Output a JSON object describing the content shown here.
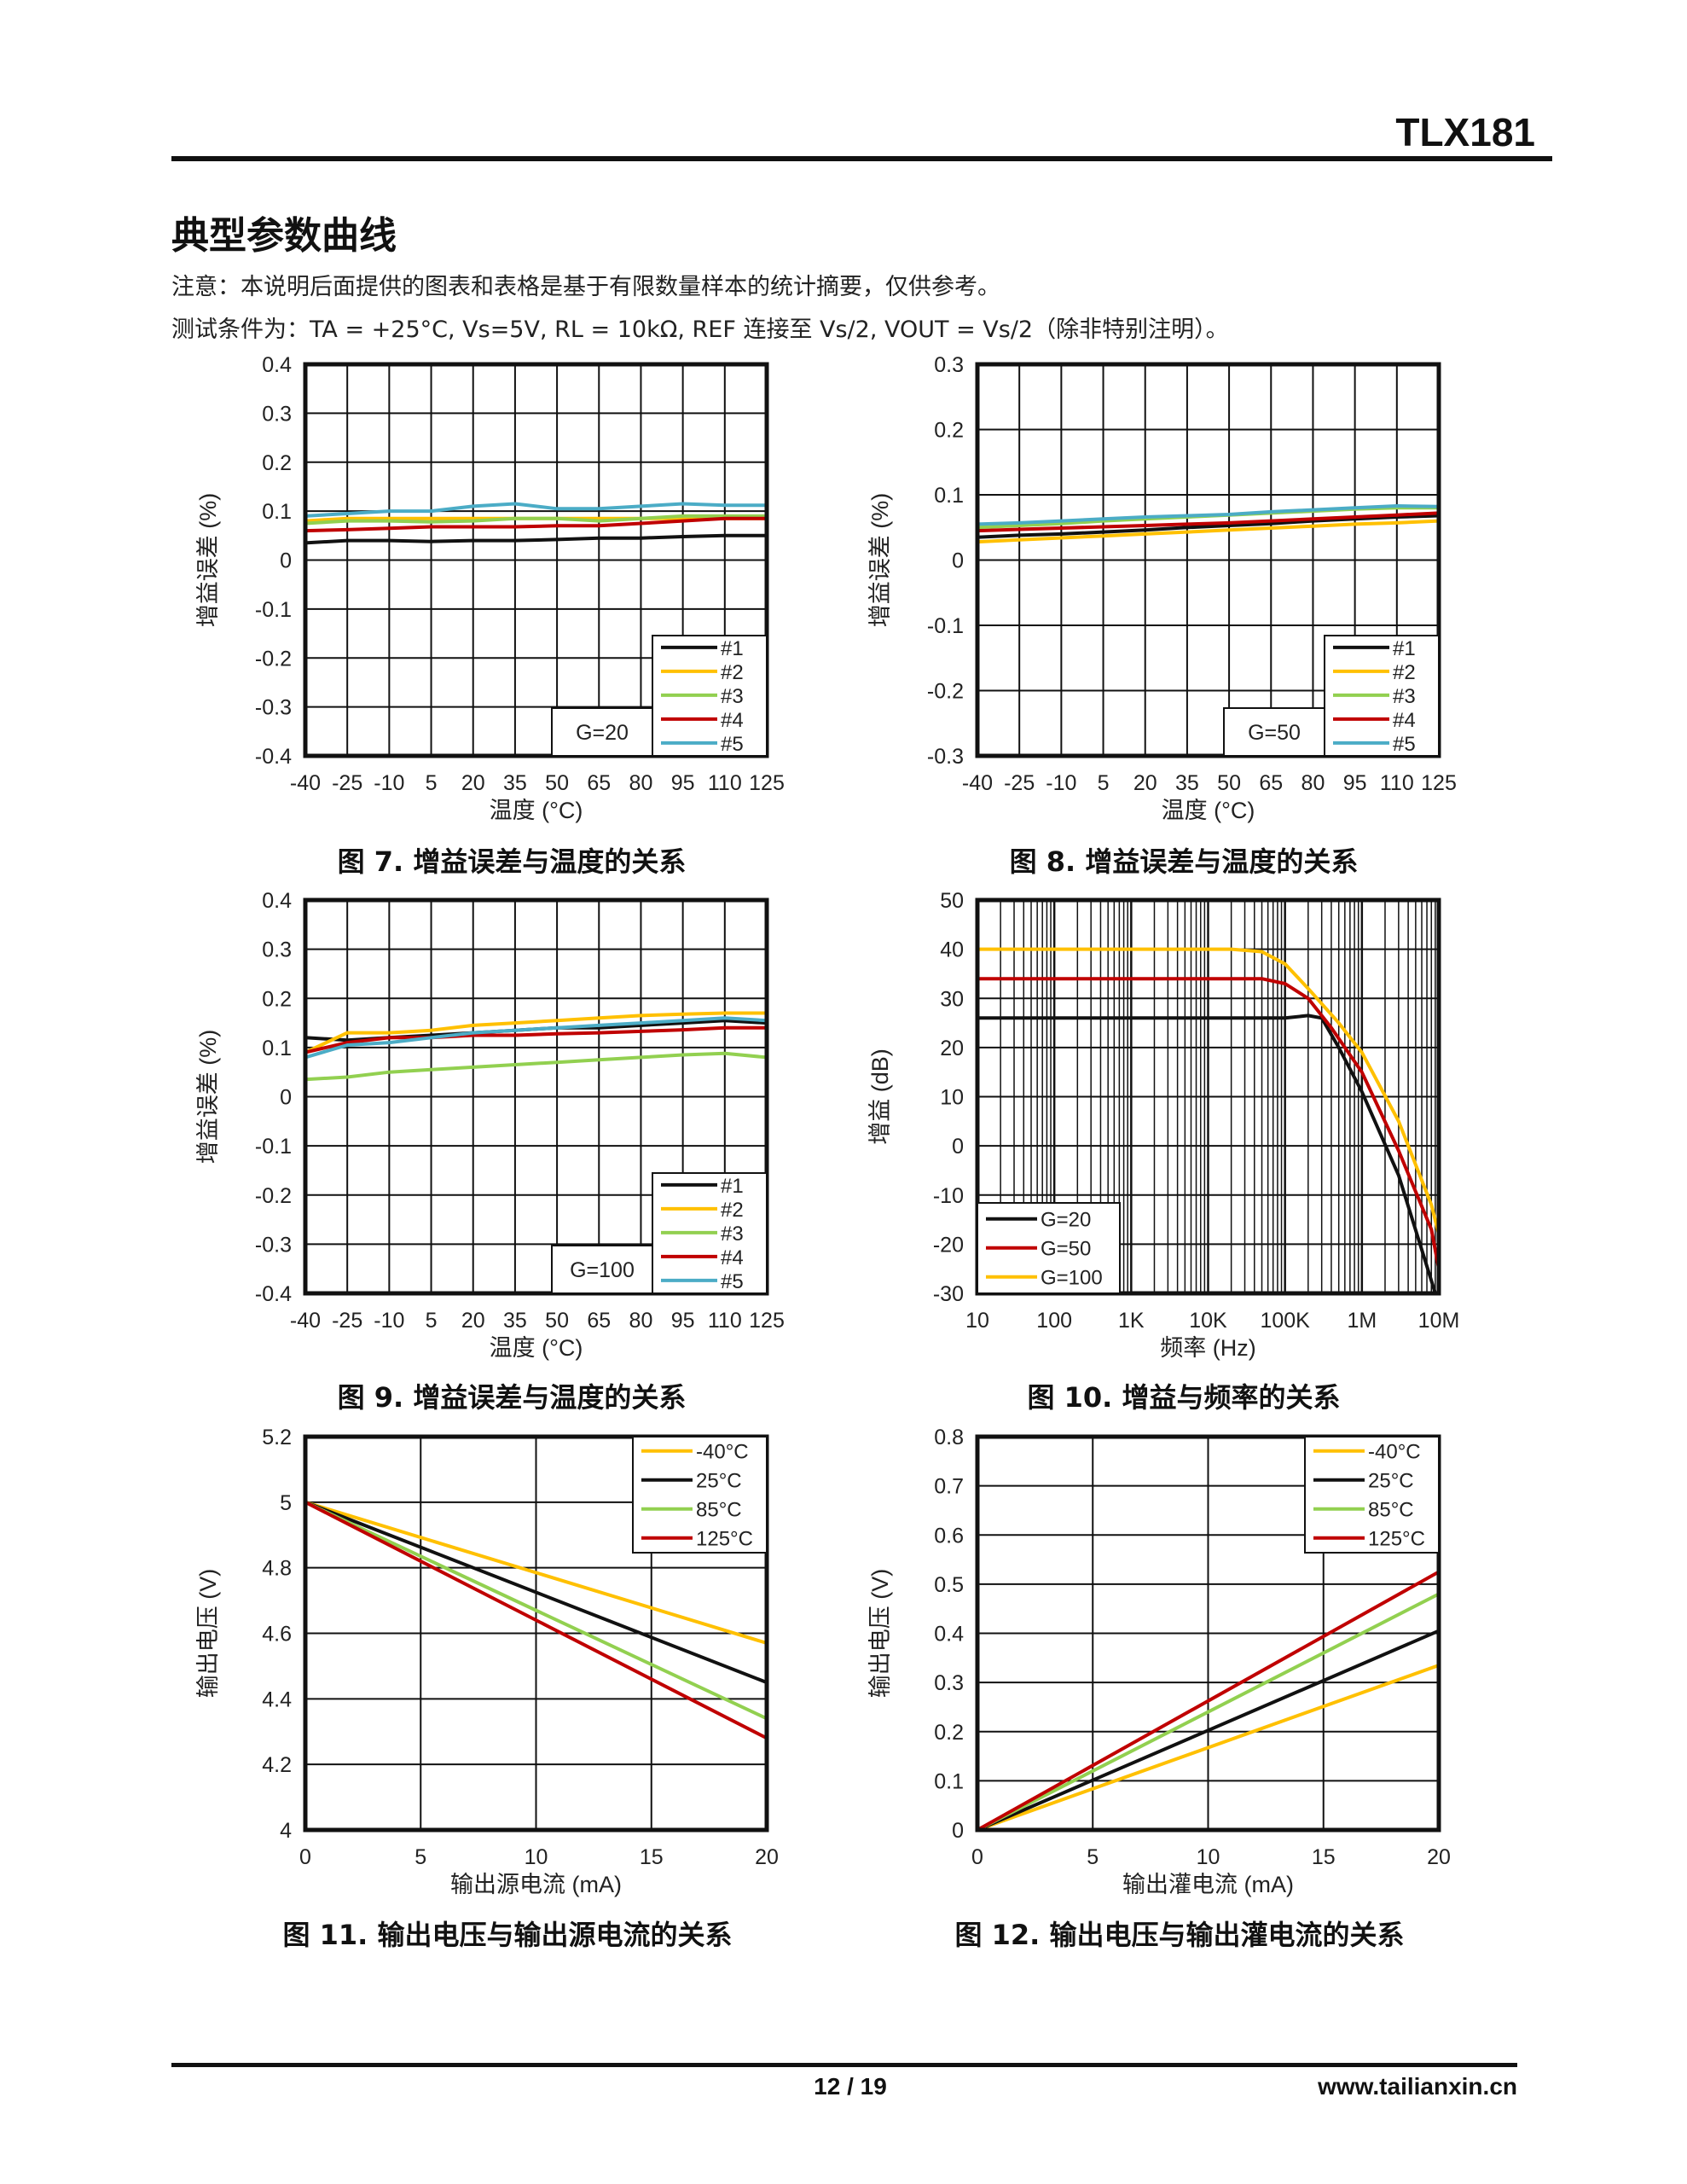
{
  "header": {
    "part_number": "TLX181"
  },
  "section_title": "典型参数曲线",
  "notes": [
    "注意：本说明后面提供的图表和表格是基于有限数量样本的统计摘要，仅供参考。",
    "测试条件为：TA = +25°C, Vs=5V, RL = 10kΩ, REF 连接至 Vs/2, VOUT = Vs/2（除非特别注明）。"
  ],
  "captions": [
    "图 7. 增益误差与温度的关系",
    "图 8. 增益误差与温度的关系",
    "图 9. 增益误差与温度的关系",
    "图 10. 增益与频率的关系",
    "图 11. 输出电压与输出源电流的关系",
    "图 12. 输出电压与输出灌电流的关系"
  ],
  "footer": {
    "page": "12 / 19",
    "website": "www.tailianxin.cn"
  },
  "colors": {
    "#1": "#111111",
    "#2": "#ffc000",
    "#3": "#92d050",
    "#4": "#c00000",
    "#5": "#4bacc6"
  },
  "chart_data": [
    {
      "type": "line",
      "xlabel": "温度 (°C)",
      "ylabel": "增益误差 (%)",
      "xticks": [
        -40,
        -25,
        -10,
        5,
        20,
        35,
        50,
        65,
        80,
        95,
        110,
        125
      ],
      "xlim": [
        -40,
        125
      ],
      "ylim": [
        -0.4,
        0.4
      ],
      "ystep": 0.1,
      "yticks": [
        "-0.4",
        "-0.3",
        "-0.2",
        "-0.1",
        "0",
        "0.1",
        "0.2",
        "0.3",
        "0.4"
      ],
      "annotation": "G=20",
      "legend": "bottom-right",
      "series": [
        {
          "name": "#1",
          "color": "#111111",
          "values": [
            0.035,
            0.04,
            0.04,
            0.038,
            0.04,
            0.04,
            0.042,
            0.045,
            0.045,
            0.048,
            0.05,
            0.05
          ]
        },
        {
          "name": "#2",
          "color": "#ffc000",
          "values": [
            0.08,
            0.085,
            0.085,
            0.085,
            0.085,
            0.085,
            0.085,
            0.085,
            0.085,
            0.085,
            0.085,
            0.085
          ]
        },
        {
          "name": "#3",
          "color": "#92d050",
          "values": [
            0.075,
            0.08,
            0.08,
            0.078,
            0.08,
            0.085,
            0.085,
            0.08,
            0.085,
            0.09,
            0.09,
            0.09
          ]
        },
        {
          "name": "#4",
          "color": "#c00000",
          "values": [
            0.06,
            0.062,
            0.065,
            0.068,
            0.068,
            0.068,
            0.07,
            0.07,
            0.075,
            0.08,
            0.085,
            0.085
          ]
        },
        {
          "name": "#5",
          "color": "#4bacc6",
          "values": [
            0.09,
            0.095,
            0.1,
            0.1,
            0.11,
            0.115,
            0.105,
            0.105,
            0.11,
            0.115,
            0.112,
            0.112
          ]
        }
      ]
    },
    {
      "type": "line",
      "xlabel": "温度 (°C)",
      "ylabel": "增益误差 (%)",
      "xticks": [
        -40,
        -25,
        -10,
        5,
        20,
        35,
        50,
        65,
        80,
        95,
        110,
        125
      ],
      "xlim": [
        -40,
        125
      ],
      "ylim": [
        -0.3,
        0.3
      ],
      "ystep": 0.1,
      "yticks": [
        "-0.3",
        "-0.2",
        "-0.1",
        "0",
        "0.1",
        "0.2",
        "0.3"
      ],
      "annotation": "G=50",
      "legend": "bottom-right",
      "series": [
        {
          "name": "#1",
          "color": "#111111",
          "values": [
            0.035,
            0.038,
            0.04,
            0.043,
            0.046,
            0.05,
            0.053,
            0.056,
            0.06,
            0.063,
            0.066,
            0.068
          ]
        },
        {
          "name": "#2",
          "color": "#ffc000",
          "values": [
            0.028,
            0.031,
            0.034,
            0.037,
            0.04,
            0.043,
            0.046,
            0.049,
            0.052,
            0.055,
            0.057,
            0.06
          ]
        },
        {
          "name": "#3",
          "color": "#92d050",
          "values": [
            0.05,
            0.053,
            0.056,
            0.06,
            0.063,
            0.066,
            0.069,
            0.072,
            0.075,
            0.078,
            0.08,
            0.08
          ]
        },
        {
          "name": "#4",
          "color": "#c00000",
          "values": [
            0.045,
            0.047,
            0.049,
            0.051,
            0.053,
            0.055,
            0.057,
            0.06,
            0.063,
            0.066,
            0.069,
            0.072
          ]
        },
        {
          "name": "#5",
          "color": "#4bacc6",
          "values": [
            0.055,
            0.057,
            0.06,
            0.063,
            0.066,
            0.068,
            0.07,
            0.074,
            0.077,
            0.08,
            0.083,
            0.082
          ]
        }
      ]
    },
    {
      "type": "line",
      "xlabel": "温度 (°C)",
      "ylabel": "增益误差 (%)",
      "xticks": [
        -40,
        -25,
        -10,
        5,
        20,
        35,
        50,
        65,
        80,
        95,
        110,
        125
      ],
      "xlim": [
        -40,
        125
      ],
      "ylim": [
        -0.4,
        0.4
      ],
      "ystep": 0.1,
      "yticks": [
        "-0.4",
        "-0.3",
        "-0.2",
        "-0.1",
        "0",
        "0.1",
        "0.2",
        "0.3",
        "0.4"
      ],
      "annotation": "G=100",
      "legend": "bottom-right",
      "series": [
        {
          "name": "#1",
          "color": "#111111",
          "values": [
            0.12,
            0.115,
            0.12,
            0.125,
            0.13,
            0.135,
            0.14,
            0.14,
            0.145,
            0.15,
            0.155,
            0.15
          ]
        },
        {
          "name": "#2",
          "color": "#ffc000",
          "values": [
            0.09,
            0.13,
            0.13,
            0.135,
            0.145,
            0.15,
            0.155,
            0.16,
            0.165,
            0.168,
            0.17,
            0.17
          ]
        },
        {
          "name": "#3",
          "color": "#92d050",
          "values": [
            0.035,
            0.04,
            0.05,
            0.055,
            0.06,
            0.065,
            0.07,
            0.075,
            0.08,
            0.085,
            0.088,
            0.08
          ]
        },
        {
          "name": "#4",
          "color": "#c00000",
          "values": [
            0.09,
            0.11,
            0.12,
            0.12,
            0.125,
            0.125,
            0.128,
            0.13,
            0.133,
            0.136,
            0.14,
            0.14
          ]
        },
        {
          "name": "#5",
          "color": "#4bacc6",
          "values": [
            0.08,
            0.105,
            0.11,
            0.12,
            0.13,
            0.135,
            0.14,
            0.145,
            0.15,
            0.155,
            0.16,
            0.155
          ]
        }
      ]
    },
    {
      "type": "line",
      "xscale": "log",
      "xlabel": "频率 (Hz)",
      "ylabel": "增益 (dB)",
      "xticks": [
        "10",
        "100",
        "1K",
        "10K",
        "100K",
        "1M",
        "10M"
      ],
      "xlim": [
        10,
        10000000
      ],
      "ylim": [
        -30,
        50
      ],
      "ystep": 10,
      "yticks": [
        "-30",
        "-20",
        "-10",
        "0",
        "10",
        "20",
        "30",
        "40",
        "50"
      ],
      "legend": "bottom-left",
      "series": [
        {
          "name": "G=20",
          "color": "#111111",
          "x": [
            10,
            1000,
            100000,
            200000,
            300000,
            500000,
            1000000,
            3000000,
            9000000
          ],
          "values": [
            26,
            26,
            26,
            26.5,
            26,
            20,
            11,
            -6,
            -30
          ]
        },
        {
          "name": "G=50",
          "color": "#c00000",
          "x": [
            10,
            1000,
            50000,
            100000,
            200000,
            400000,
            1000000,
            3000000,
            8000000,
            10000000
          ],
          "values": [
            34,
            34,
            34,
            33,
            30,
            24,
            15,
            -1,
            -17,
            -25
          ]
        },
        {
          "name": "G=100",
          "color": "#ffc000",
          "x": [
            10,
            1000,
            20000,
            50000,
            100000,
            200000,
            500000,
            1000000,
            3000000,
            8000000,
            10000000
          ],
          "values": [
            40,
            40,
            40,
            39.5,
            37,
            32,
            25,
            19,
            5,
            -12,
            -18
          ]
        }
      ]
    },
    {
      "type": "line",
      "xlabel": "输出源电流 (mA)",
      "ylabel": "输出电压 (V)",
      "xticks": [
        0,
        5,
        10,
        15,
        20
      ],
      "xlim": [
        0,
        20
      ],
      "ylim": [
        4,
        5.2
      ],
      "ystep": 0.2,
      "yticks": [
        "4",
        "4.2",
        "4.4",
        "4.6",
        "4.8",
        "5",
        "5.2"
      ],
      "legend": "top-right",
      "series": [
        {
          "name": "-40°C",
          "color": "#ffc000",
          "x": [
            0,
            20
          ],
          "values": [
            5,
            4.57
          ]
        },
        {
          "name": "25°C",
          "color": "#111111",
          "x": [
            0,
            20
          ],
          "values": [
            5,
            4.45
          ]
        },
        {
          "name": "85°C",
          "color": "#92d050",
          "x": [
            0,
            20
          ],
          "values": [
            5,
            4.34
          ]
        },
        {
          "name": "125°C",
          "color": "#c00000",
          "x": [
            0,
            20
          ],
          "values": [
            5,
            4.28
          ]
        }
      ]
    },
    {
      "type": "line",
      "xlabel": "输出灌电流 (mA)",
      "ylabel": "输出电压 (V)",
      "xticks": [
        0,
        5,
        10,
        15,
        20
      ],
      "xlim": [
        0,
        20
      ],
      "ylim": [
        0,
        0.8
      ],
      "ystep": 0.1,
      "yticks": [
        "0",
        "0.1",
        "0.2",
        "0.3",
        "0.4",
        "0.5",
        "0.6",
        "0.7",
        "0.8"
      ],
      "legend": "top-right",
      "series": [
        {
          "name": "-40°C",
          "color": "#ffc000",
          "x": [
            0,
            20
          ],
          "values": [
            0,
            0.335
          ]
        },
        {
          "name": "25°C",
          "color": "#111111",
          "x": [
            0,
            20
          ],
          "values": [
            0,
            0.405
          ]
        },
        {
          "name": "85°C",
          "color": "#92d050",
          "x": [
            0,
            20
          ],
          "values": [
            0,
            0.48
          ]
        },
        {
          "name": "125°C",
          "color": "#c00000",
          "x": [
            0,
            20
          ],
          "values": [
            0,
            0.525
          ]
        }
      ]
    }
  ]
}
